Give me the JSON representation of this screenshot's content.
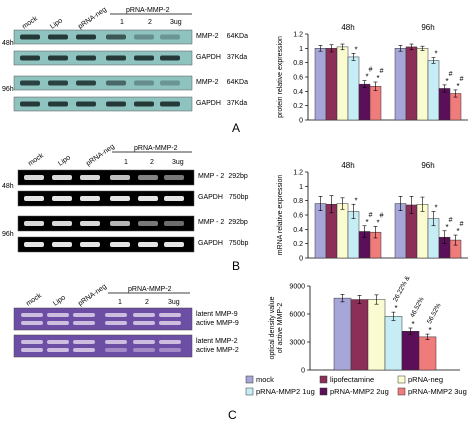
{
  "colors": {
    "mock": "#a6a6d8",
    "lipofectamine": "#8c2f58",
    "prna_neg": "#fbfbd2",
    "ug1": "#c6ecf6",
    "ug2": "#5a0f58",
    "ug3": "#ef7b7b",
    "western_bg": "#8ec3c0",
    "rtpcr_bg": "#000000",
    "zymo_bg": "#6c4fa5"
  },
  "panel_a": {
    "letter": "A",
    "lanes": [
      "mock",
      "Lipo",
      "pRNA-neg",
      "1",
      "2",
      "3ug"
    ],
    "group_label": "pRNA-MMP-2",
    "rows": [
      {
        "time": "48h",
        "bands": [
          {
            "label": "MMP-2",
            "size": "64KDa"
          },
          {
            "label": "GAPDH",
            "size": "37Kda"
          }
        ]
      },
      {
        "time": "96h",
        "bands": [
          {
            "label": "MMP-2",
            "size": "64KDa"
          },
          {
            "label": "GAPDH",
            "size": "37Kda"
          }
        ]
      }
    ]
  },
  "panel_b": {
    "letter": "B",
    "lanes": [
      "mock",
      "Lipo",
      "pRNA-neg",
      "1",
      "2",
      "3ug"
    ],
    "group_label": "pRNA-MMP-2",
    "rows": [
      {
        "time": "48h",
        "bands": [
          {
            "label": "MMP - 2",
            "size": "292bp"
          },
          {
            "label": "GAPDH",
            "size": "750bp"
          }
        ]
      },
      {
        "time": "96h",
        "bands": [
          {
            "label": "MMP - 2",
            "size": "292bp"
          },
          {
            "label": "GAPDH",
            "size": "750bp"
          }
        ]
      }
    ]
  },
  "panel_c": {
    "letter": "C",
    "lanes": [
      "mock",
      "Lipo",
      "pRNA-neg",
      "1",
      "2",
      "3ug"
    ],
    "group_label": "pRNA-MMP-2",
    "rows": [
      {
        "labels": [
          "latent MMP-9",
          "active MMP-9"
        ]
      },
      {
        "labels": [
          "latent MMP-2",
          "active MMP-2"
        ]
      }
    ]
  },
  "legend": {
    "items": [
      "mock",
      "lipofectamine",
      "pRNA-neg",
      "pRNA-MMP2 1ug",
      "pRNA-MMP2 2ug",
      "pRNA-MMP2 3ug"
    ]
  },
  "chart_data": [
    {
      "type": "bar",
      "ylabel": "protein relative expression",
      "ylim": [
        0,
        1.2
      ],
      "yticks": [
        "0",
        "0.2",
        "0.4",
        "0.6",
        "0.8",
        "1",
        "1.2"
      ],
      "categories": [
        "48h",
        "96h"
      ],
      "series": [
        {
          "name": "mock",
          "values": [
            1.0,
            1.0
          ],
          "errors": [
            0.04,
            0.04
          ]
        },
        {
          "name": "lipofectamine",
          "values": [
            1.0,
            1.02
          ],
          "errors": [
            0.05,
            0.04
          ]
        },
        {
          "name": "pRNA-neg",
          "values": [
            1.02,
            1.0
          ],
          "errors": [
            0.04,
            0.03
          ]
        },
        {
          "name": "pRNA-MMP2 1ug",
          "values": [
            0.88,
            0.83
          ],
          "errors": [
            0.05,
            0.04
          ]
        },
        {
          "name": "pRNA-MMP2 2ug",
          "values": [
            0.5,
            0.44
          ],
          "errors": [
            0.05,
            0.05
          ]
        },
        {
          "name": "pRNA-MMP2 3ug",
          "values": [
            0.47,
            0.37
          ],
          "errors": [
            0.06,
            0.05
          ]
        }
      ],
      "annotations": [
        [
          "",
          ""
        ],
        [
          "",
          ""
        ],
        [
          "",
          ""
        ],
        [
          "*",
          "*"
        ],
        [
          "*#",
          "*#"
        ],
        [
          "*#",
          "*#"
        ]
      ]
    },
    {
      "type": "bar",
      "ylabel": "mRNA relative expression",
      "ylim": [
        0,
        1.2
      ],
      "yticks": [
        "0",
        "0.2",
        "0.4",
        "0.6",
        "0.8",
        "1",
        "1.2"
      ],
      "categories": [
        "48h",
        "96h"
      ],
      "series": [
        {
          "name": "mock",
          "values": [
            0.76,
            0.76
          ],
          "errors": [
            0.1,
            0.1
          ]
        },
        {
          "name": "lipofectamine",
          "values": [
            0.75,
            0.74
          ],
          "errors": [
            0.12,
            0.12
          ]
        },
        {
          "name": "pRNA-neg",
          "values": [
            0.76,
            0.75
          ],
          "errors": [
            0.08,
            0.1
          ]
        },
        {
          "name": "pRNA-MMP2 1ug",
          "values": [
            0.65,
            0.55
          ],
          "errors": [
            0.1,
            0.1
          ]
        },
        {
          "name": "pRNA-MMP2 2ug",
          "values": [
            0.37,
            0.29
          ],
          "errors": [
            0.08,
            0.09
          ]
        },
        {
          "name": "pRNA-MMP2 3ug",
          "values": [
            0.36,
            0.25
          ],
          "errors": [
            0.08,
            0.07
          ]
        }
      ],
      "annotations": [
        [
          "",
          ""
        ],
        [
          "",
          ""
        ],
        [
          "",
          ""
        ],
        [
          "*",
          "*"
        ],
        [
          "*#",
          "*#"
        ],
        [
          "*#",
          "*#"
        ]
      ]
    },
    {
      "type": "bar",
      "ylabel": "optical density value of active MMP-2",
      "ylim": [
        0,
        9000
      ],
      "yticks": [
        "0",
        "3000",
        "6000",
        "9000"
      ],
      "categories": [
        ""
      ],
      "series": [
        {
          "name": "mock",
          "values": [
            7700
          ],
          "errors": [
            400
          ]
        },
        {
          "name": "lipofectamine",
          "values": [
            7550
          ],
          "errors": [
            450
          ]
        },
        {
          "name": "pRNA-neg",
          "values": [
            7550
          ],
          "errors": [
            500
          ]
        },
        {
          "name": "pRNA-MMP2 1ug",
          "values": [
            5750
          ],
          "errors": [
            450
          ]
        },
        {
          "name": "pRNA-MMP2 2ug",
          "values": [
            4150
          ],
          "errors": [
            350
          ]
        },
        {
          "name": "pRNA-MMP2 3ug",
          "values": [
            3550
          ],
          "errors": [
            300
          ]
        }
      ],
      "annotations": [
        [
          ""
        ],
        [
          ""
        ],
        [
          ""
        ],
        [
          "*"
        ],
        [
          "*"
        ],
        [
          "*"
        ]
      ],
      "percent_labels": [
        "",
        "",
        "",
        "26.22% &",
        "46.52%",
        "56.52%"
      ]
    }
  ]
}
